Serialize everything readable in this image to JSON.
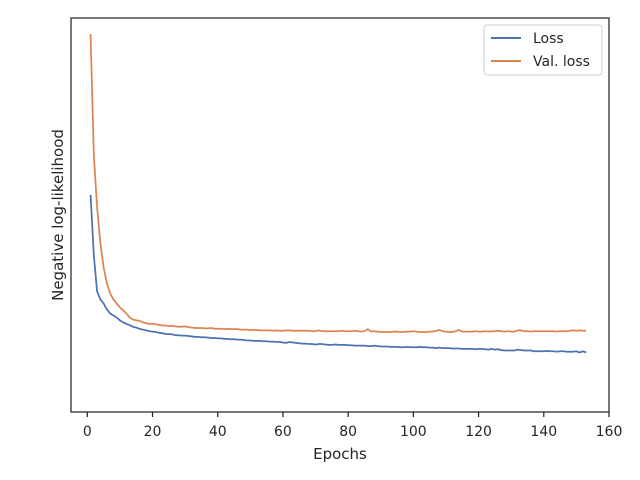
{
  "chart_data": {
    "type": "line",
    "xlabel": "Epochs",
    "ylabel": "Negative log-likelihood",
    "xlim": [
      -5,
      160
    ],
    "ylim": [
      0.09,
      1.07
    ],
    "x_ticks": [
      0,
      20,
      40,
      60,
      80,
      100,
      120,
      140,
      160
    ],
    "y_ticks_shown": false,
    "grid": false,
    "legend": {
      "placement": "top-right",
      "entries": [
        "Loss",
        "Val. loss"
      ]
    },
    "series": [
      {
        "name": "Loss",
        "color": "#4c72b0",
        "x": [
          1,
          2,
          3,
          4,
          5,
          6,
          7,
          8,
          9,
          10,
          11,
          12,
          13,
          14,
          15,
          16,
          17,
          18,
          19,
          20,
          21,
          22,
          23,
          24,
          25,
          26,
          27,
          28,
          29,
          30,
          31,
          32,
          33,
          34,
          35,
          36,
          37,
          38,
          39,
          40,
          41,
          42,
          43,
          44,
          45,
          46,
          47,
          48,
          49,
          50,
          51,
          52,
          53,
          54,
          55,
          56,
          57,
          58,
          59,
          60,
          61,
          62,
          63,
          64,
          65,
          66,
          67,
          68,
          69,
          70,
          71,
          72,
          73,
          74,
          75,
          76,
          77,
          78,
          79,
          80,
          81,
          82,
          83,
          84,
          85,
          86,
          87,
          88,
          89,
          90,
          91,
          92,
          93,
          94,
          95,
          96,
          97,
          98,
          99,
          100,
          101,
          102,
          103,
          104,
          105,
          106,
          107,
          108,
          109,
          110,
          111,
          112,
          113,
          114,
          115,
          116,
          117,
          118,
          119,
          120,
          121,
          122,
          123,
          124,
          125,
          126,
          127,
          128,
          129,
          130,
          131,
          132,
          133,
          134,
          135,
          136,
          137,
          138,
          139,
          140,
          141,
          142,
          143,
          144,
          145,
          146,
          147,
          148,
          149,
          150,
          151,
          152,
          153
        ],
        "values": [
          0.63,
          0.48,
          0.39,
          0.37,
          0.36,
          0.345,
          0.335,
          0.33,
          0.325,
          0.318,
          0.313,
          0.309,
          0.306,
          0.302,
          0.3,
          0.297,
          0.295,
          0.293,
          0.291,
          0.29,
          0.289,
          0.287,
          0.286,
          0.284,
          0.284,
          0.283,
          0.281,
          0.281,
          0.28,
          0.28,
          0.279,
          0.278,
          0.277,
          0.277,
          0.276,
          0.276,
          0.275,
          0.274,
          0.274,
          0.273,
          0.273,
          0.272,
          0.272,
          0.271,
          0.271,
          0.27,
          0.27,
          0.269,
          0.268,
          0.268,
          0.267,
          0.267,
          0.267,
          0.266,
          0.266,
          0.265,
          0.265,
          0.264,
          0.264,
          0.263,
          0.262,
          0.264,
          0.263,
          0.262,
          0.261,
          0.26,
          0.26,
          0.259,
          0.259,
          0.258,
          0.259,
          0.259,
          0.258,
          0.257,
          0.257,
          0.258,
          0.257,
          0.257,
          0.257,
          0.256,
          0.256,
          0.255,
          0.255,
          0.255,
          0.255,
          0.254,
          0.254,
          0.255,
          0.254,
          0.253,
          0.253,
          0.253,
          0.252,
          0.252,
          0.252,
          0.251,
          0.251,
          0.252,
          0.251,
          0.251,
          0.251,
          0.252,
          0.251,
          0.251,
          0.25,
          0.25,
          0.249,
          0.25,
          0.249,
          0.249,
          0.249,
          0.248,
          0.248,
          0.248,
          0.247,
          0.247,
          0.247,
          0.247,
          0.246,
          0.247,
          0.247,
          0.246,
          0.245,
          0.247,
          0.245,
          0.246,
          0.244,
          0.243,
          0.243,
          0.243,
          0.243,
          0.245,
          0.244,
          0.243,
          0.243,
          0.243,
          0.241,
          0.241,
          0.241,
          0.241,
          0.242,
          0.241,
          0.241,
          0.24,
          0.241,
          0.241,
          0.24,
          0.24,
          0.24,
          0.241,
          0.238,
          0.241,
          0.238
        ]
      },
      {
        "name": "Val. loss",
        "color": "#dd8452",
        "x": [
          1,
          2,
          3,
          4,
          5,
          6,
          7,
          8,
          9,
          10,
          11,
          12,
          13,
          14,
          15,
          16,
          17,
          18,
          19,
          20,
          21,
          22,
          23,
          24,
          25,
          26,
          27,
          28,
          29,
          30,
          31,
          32,
          33,
          34,
          35,
          36,
          37,
          38,
          39,
          40,
          41,
          42,
          43,
          44,
          45,
          46,
          47,
          48,
          49,
          50,
          51,
          52,
          53,
          54,
          55,
          56,
          57,
          58,
          59,
          60,
          61,
          62,
          63,
          64,
          65,
          66,
          67,
          68,
          69,
          70,
          71,
          72,
          73,
          74,
          75,
          76,
          77,
          78,
          79,
          80,
          81,
          82,
          83,
          84,
          85,
          86,
          87,
          88,
          89,
          90,
          91,
          92,
          93,
          94,
          95,
          96,
          97,
          98,
          99,
          100,
          101,
          102,
          103,
          104,
          105,
          106,
          107,
          108,
          109,
          110,
          111,
          112,
          113,
          114,
          115,
          116,
          117,
          118,
          119,
          120,
          121,
          122,
          123,
          124,
          125,
          126,
          127,
          128,
          129,
          130,
          131,
          132,
          133,
          134,
          135,
          136,
          137,
          138,
          139,
          140,
          141,
          142,
          143,
          144,
          145,
          146,
          147,
          148,
          149,
          150,
          151,
          152,
          153
        ],
        "values": [
          1.03,
          0.73,
          0.6,
          0.51,
          0.45,
          0.41,
          0.385,
          0.37,
          0.36,
          0.35,
          0.343,
          0.335,
          0.325,
          0.32,
          0.318,
          0.317,
          0.313,
          0.311,
          0.309,
          0.31,
          0.308,
          0.307,
          0.305,
          0.305,
          0.304,
          0.304,
          0.303,
          0.302,
          0.302,
          0.303,
          0.301,
          0.3,
          0.299,
          0.299,
          0.299,
          0.298,
          0.298,
          0.299,
          0.297,
          0.297,
          0.297,
          0.296,
          0.297,
          0.296,
          0.296,
          0.296,
          0.295,
          0.295,
          0.295,
          0.294,
          0.294,
          0.294,
          0.293,
          0.293,
          0.293,
          0.293,
          0.292,
          0.293,
          0.292,
          0.292,
          0.293,
          0.293,
          0.292,
          0.292,
          0.292,
          0.292,
          0.292,
          0.292,
          0.291,
          0.291,
          0.293,
          0.291,
          0.291,
          0.291,
          0.291,
          0.291,
          0.291,
          0.292,
          0.291,
          0.291,
          0.291,
          0.292,
          0.291,
          0.29,
          0.291,
          0.296,
          0.29,
          0.291,
          0.29,
          0.289,
          0.289,
          0.289,
          0.289,
          0.29,
          0.29,
          0.289,
          0.289,
          0.29,
          0.29,
          0.291,
          0.29,
          0.289,
          0.289,
          0.289,
          0.29,
          0.29,
          0.292,
          0.294,
          0.291,
          0.29,
          0.289,
          0.289,
          0.291,
          0.294,
          0.29,
          0.29,
          0.29,
          0.29,
          0.291,
          0.29,
          0.29,
          0.291,
          0.29,
          0.291,
          0.291,
          0.292,
          0.291,
          0.29,
          0.291,
          0.29,
          0.29,
          0.293,
          0.293,
          0.291,
          0.291,
          0.29,
          0.291,
          0.291,
          0.291,
          0.291,
          0.291,
          0.291,
          0.291,
          0.29,
          0.291,
          0.291,
          0.291,
          0.292,
          0.293,
          0.292,
          0.293,
          0.292,
          0.292
        ]
      }
    ]
  }
}
